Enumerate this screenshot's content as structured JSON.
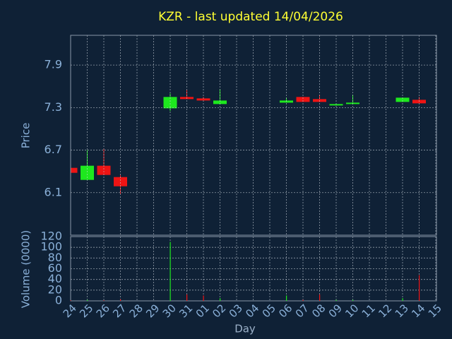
{
  "chart_data": {
    "type": "candlestick",
    "title": "KZR - last updated 14/04/2026",
    "xlabel": "Day",
    "ylabel": "Price",
    "volume_label": "Volume (0000)",
    "categories": [
      "24",
      "25",
      "26",
      "27",
      "28",
      "29",
      "30",
      "31",
      "01",
      "02",
      "03",
      "04",
      "05",
      "06",
      "07",
      "08",
      "09",
      "10",
      "11",
      "12",
      "13",
      "14",
      "15"
    ],
    "open": [
      6.45,
      6.28,
      6.48,
      6.32,
      null,
      null,
      7.29,
      7.45,
      7.43,
      7.35,
      null,
      null,
      null,
      7.37,
      7.45,
      7.42,
      7.33,
      7.35,
      null,
      null,
      7.38,
      7.41,
      null
    ],
    "high": [
      6.45,
      6.7,
      6.72,
      6.35,
      null,
      null,
      7.5,
      7.55,
      7.45,
      7.56,
      null,
      null,
      null,
      7.44,
      7.45,
      7.48,
      7.35,
      7.48,
      null,
      null,
      7.44,
      7.45,
      null
    ],
    "low": [
      6.38,
      6.28,
      6.35,
      6.08,
      null,
      null,
      7.25,
      7.42,
      7.4,
      7.35,
      null,
      null,
      null,
      7.37,
      7.38,
      7.38,
      7.33,
      7.35,
      null,
      null,
      7.38,
      7.36,
      null
    ],
    "close": [
      6.38,
      6.48,
      6.35,
      6.19,
      null,
      null,
      7.45,
      7.42,
      7.4,
      7.4,
      null,
      null,
      null,
      7.4,
      7.38,
      7.38,
      7.35,
      7.37,
      null,
      null,
      7.44,
      7.36,
      null
    ],
    "volume": [
      1,
      2,
      1,
      3,
      null,
      null,
      110,
      12,
      10,
      5,
      null,
      null,
      null,
      10,
      2,
      12,
      2,
      2,
      null,
      null,
      5,
      48,
      null
    ],
    "up_color": "#1ee81e",
    "down_color": "#ee1414",
    "ylim": [
      5.5,
      8.32
    ],
    "yticks": [
      6.1,
      6.7,
      7.3,
      7.9
    ],
    "volume_ylim": [
      0,
      120
    ],
    "volume_yticks": [
      0,
      20,
      40,
      60,
      80,
      100,
      120
    ],
    "grid": true
  }
}
